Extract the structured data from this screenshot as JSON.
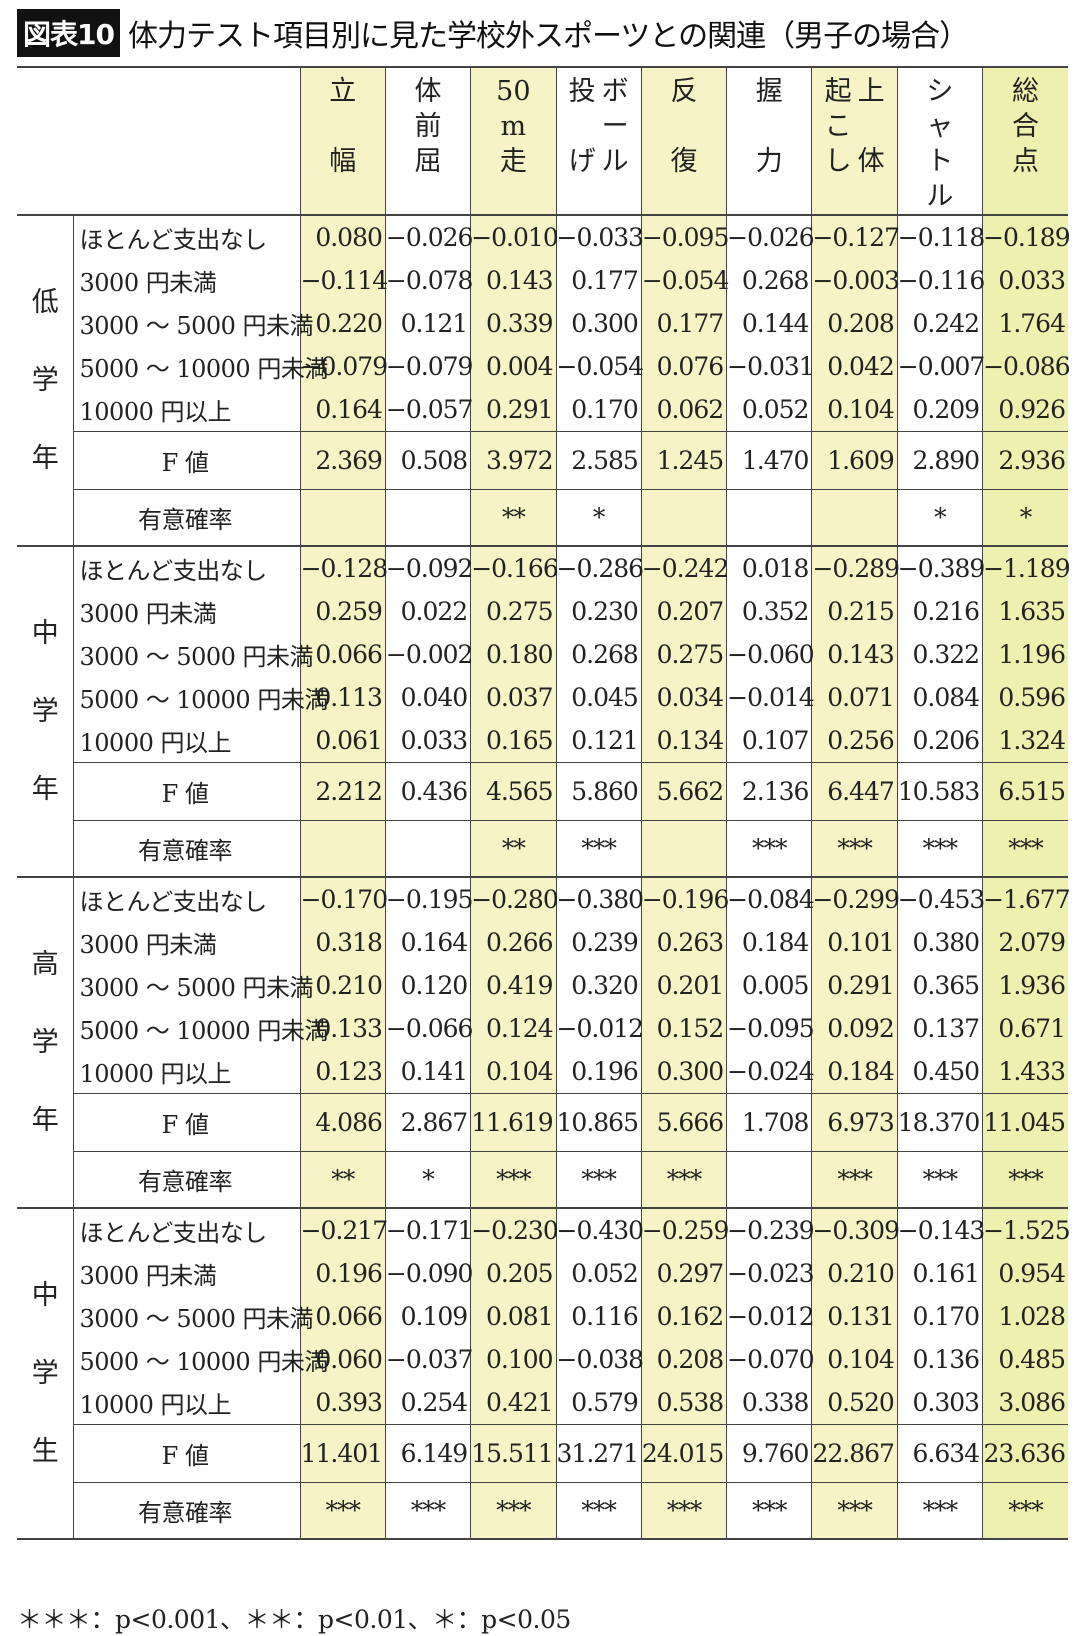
{
  "title": {
    "badge": "図表10",
    "text": "体力テスト項目別に見た学校外スポーツとの関連（男子の場合）"
  },
  "colors": {
    "highlight": "#f6f4c6",
    "highlight_total": "#eef0b0"
  },
  "columns": [
    {
      "label": [
        "立",
        "",
        "幅"
      ],
      "hl": 1
    },
    {
      "label": [
        "体",
        "前",
        "屈"
      ],
      "hl": 0
    },
    {
      "label": [
        "50",
        "m",
        "走"
      ],
      "hl": 1
    },
    {
      "label": [
        "投",
        "ボ",
        "ー",
        "げ",
        "ル"
      ],
      "hl": 0,
      "two": true
    },
    {
      "label": [
        "反",
        "",
        "復"
      ],
      "hl": 1
    },
    {
      "label": [
        "握",
        "",
        "力"
      ],
      "hl": 0
    },
    {
      "label": [
        "起",
        "上",
        "こ",
        "し",
        "体"
      ],
      "hl": 1,
      "two": true
    },
    {
      "label": [
        "シ",
        "ャ",
        "ト",
        "ル"
      ],
      "hl": 0
    },
    {
      "label": [
        "総",
        "合",
        "点"
      ],
      "hl": 2
    }
  ],
  "categories": [
    "ほとんど支出なし",
    "3000 円未満",
    "3000 ～ 5000 円未満",
    "5000 ～ 10000 円未満",
    "10000 円以上"
  ],
  "f_label": "F 値",
  "sig_label": "有意確率",
  "groups": [
    {
      "label": [
        "低",
        "学",
        "年"
      ],
      "rows": [
        [
          "0.080",
          "−0.026",
          "−0.010",
          "−0.033",
          "−0.095",
          "−0.026",
          "−0.127",
          "−0.118",
          "−0.189"
        ],
        [
          "−0.114",
          "−0.078",
          "0.143",
          "0.177",
          "−0.054",
          "0.268",
          "−0.003",
          "−0.116",
          "0.033"
        ],
        [
          "0.220",
          "0.121",
          "0.339",
          "0.300",
          "0.177",
          "0.144",
          "0.208",
          "0.242",
          "1.764"
        ],
        [
          "−0.079",
          "−0.079",
          "0.004",
          "−0.054",
          "0.076",
          "−0.031",
          "0.042",
          "−0.007",
          "−0.086"
        ],
        [
          "0.164",
          "−0.057",
          "0.291",
          "0.170",
          "0.062",
          "0.052",
          "0.104",
          "0.209",
          "0.926"
        ]
      ],
      "f": [
        "2.369",
        "0.508",
        "3.972",
        "2.585",
        "1.245",
        "1.470",
        "1.609",
        "2.890",
        "2.936"
      ],
      "sig": [
        "",
        "",
        "**",
        "*",
        "",
        "",
        "",
        "*",
        "*"
      ]
    },
    {
      "label": [
        "中",
        "学",
        "年"
      ],
      "rows": [
        [
          "−0.128",
          "−0.092",
          "−0.166",
          "−0.286",
          "−0.242",
          "0.018",
          "−0.289",
          "−0.389",
          "−1.189"
        ],
        [
          "0.259",
          "0.022",
          "0.275",
          "0.230",
          "0.207",
          "0.352",
          "0.215",
          "0.216",
          "1.635"
        ],
        [
          "0.066",
          "−0.002",
          "0.180",
          "0.268",
          "0.275",
          "−0.060",
          "0.143",
          "0.322",
          "1.196"
        ],
        [
          "0.113",
          "0.040",
          "0.037",
          "0.045",
          "0.034",
          "−0.014",
          "0.071",
          "0.084",
          "0.596"
        ],
        [
          "0.061",
          "0.033",
          "0.165",
          "0.121",
          "0.134",
          "0.107",
          "0.256",
          "0.206",
          "1.324"
        ]
      ],
      "f": [
        "2.212",
        "0.436",
        "4.565",
        "5.860",
        "5.662",
        "2.136",
        "6.447",
        "10.583",
        "6.515"
      ],
      "sig": [
        "",
        "",
        "**",
        "***",
        "",
        "***",
        "***",
        "***",
        "***"
      ]
    },
    {
      "label": [
        "高",
        "学",
        "年"
      ],
      "rows": [
        [
          "−0.170",
          "−0.195",
          "−0.280",
          "−0.380",
          "−0.196",
          "−0.084",
          "−0.299",
          "−0.453",
          "−1.677"
        ],
        [
          "0.318",
          "0.164",
          "0.266",
          "0.239",
          "0.263",
          "0.184",
          "0.101",
          "0.380",
          "2.079"
        ],
        [
          "0.210",
          "0.120",
          "0.419",
          "0.320",
          "0.201",
          "0.005",
          "0.291",
          "0.365",
          "1.936"
        ],
        [
          "0.133",
          "−0.066",
          "0.124",
          "−0.012",
          "0.152",
          "−0.095",
          "0.092",
          "0.137",
          "0.671"
        ],
        [
          "0.123",
          "0.141",
          "0.104",
          "0.196",
          "0.300",
          "−0.024",
          "0.184",
          "0.450",
          "1.433"
        ]
      ],
      "f": [
        "4.086",
        "2.867",
        "11.619",
        "10.865",
        "5.666",
        "1.708",
        "6.973",
        "18.370",
        "11.045"
      ],
      "sig": [
        "**",
        "*",
        "***",
        "***",
        "***",
        "",
        "***",
        "***",
        "***"
      ]
    },
    {
      "label": [
        "中",
        "学",
        "生"
      ],
      "rows": [
        [
          "−0.217",
          "−0.171",
          "−0.230",
          "−0.430",
          "−0.259",
          "−0.239",
          "−0.309",
          "−0.143",
          "−1.525"
        ],
        [
          "0.196",
          "−0.090",
          "0.205",
          "0.052",
          "0.297",
          "−0.023",
          "0.210",
          "0.161",
          "0.954"
        ],
        [
          "0.066",
          "0.109",
          "0.081",
          "0.116",
          "0.162",
          "−0.012",
          "0.131",
          "0.170",
          "1.028"
        ],
        [
          "0.060",
          "−0.037",
          "0.100",
          "−0.038",
          "0.208",
          "−0.070",
          "0.104",
          "0.136",
          "0.485"
        ],
        [
          "0.393",
          "0.254",
          "0.421",
          "0.579",
          "0.538",
          "0.338",
          "0.520",
          "0.303",
          "3.086"
        ]
      ],
      "f": [
        "11.401",
        "6.149",
        "15.511",
        "31.271",
        "24.015",
        "9.760",
        "22.867",
        "6.634",
        "23.636"
      ],
      "sig": [
        "***",
        "***",
        "***",
        "***",
        "***",
        "***",
        "***",
        "***",
        "***"
      ]
    }
  ],
  "footnote": "＊＊＊：p<0.001、＊＊：p<0.01、＊：p<0.05"
}
